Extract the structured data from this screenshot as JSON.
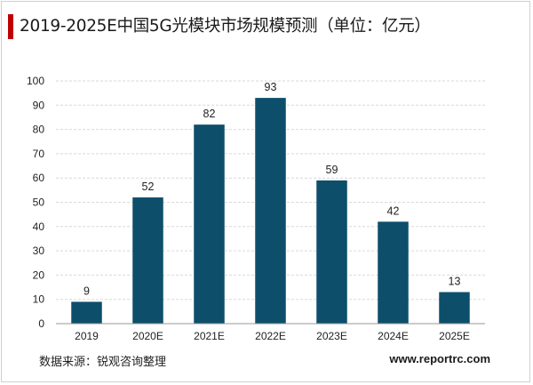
{
  "title": "2019-2025E中国5G光模块市场规模预测（单位：亿元）",
  "source": "数据来源：锐观咨询整理",
  "website": "www.reportrc.com",
  "colors": {
    "bar": "#0d4f6b",
    "title_accent": "#c00000",
    "grid": "#d9d9d9"
  },
  "chart_data": {
    "type": "bar",
    "title": "2019-2025E中国5G光模块市场规模预测（单位：亿元）",
    "categories": [
      "2019",
      "2020E",
      "2021E",
      "2022E",
      "2023E",
      "2024E",
      "2025E"
    ],
    "values": [
      9,
      52,
      82,
      93,
      59,
      42,
      13
    ],
    "ylim": [
      0,
      100
    ],
    "yticks": [
      0,
      10,
      20,
      30,
      40,
      50,
      60,
      70,
      80,
      90,
      100
    ],
    "xlabel": "",
    "ylabel": "",
    "grid": true,
    "legend": "none"
  }
}
